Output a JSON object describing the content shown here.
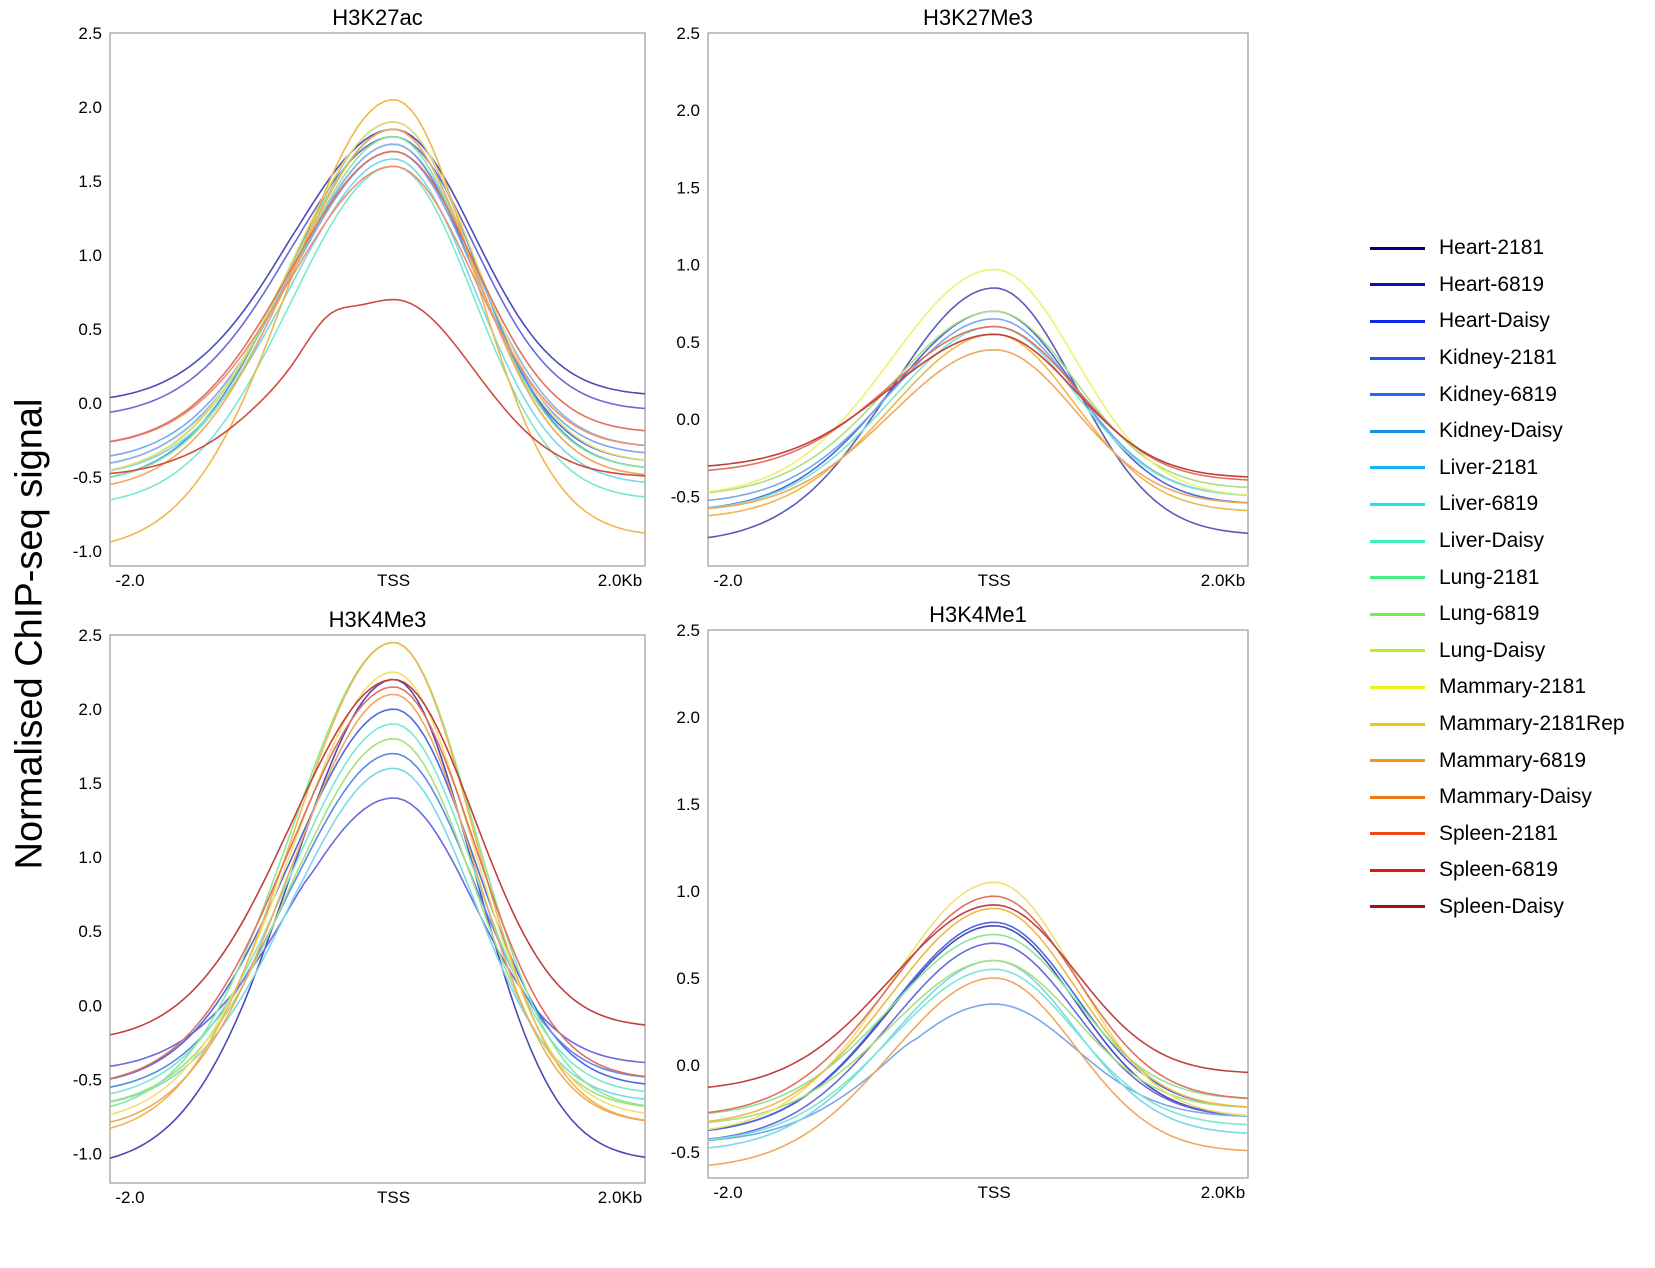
{
  "ylabel": "Normalised ChIP-seq signal",
  "legend": [
    {
      "label": "Heart-2181",
      "color": "#00007a"
    },
    {
      "label": "Heart-6819",
      "color": "#0a14b4"
    },
    {
      "label": "Heart-Daisy",
      "color": "#0a28e6"
    },
    {
      "label": "Kidney-2181",
      "color": "#2350f0"
    },
    {
      "label": "Kidney-6819",
      "color": "#1c6cf0"
    },
    {
      "label": "Kidney-Daisy",
      "color": "#1490e6"
    },
    {
      "label": "Liver-2181",
      "color": "#14b4f0"
    },
    {
      "label": "Liver-6819",
      "color": "#1ee6e6"
    },
    {
      "label": "Liver-Daisy",
      "color": "#3cf0be"
    },
    {
      "label": "Lung-2181",
      "color": "#46f082"
    },
    {
      "label": "Lung-6819",
      "color": "#6ef050"
    },
    {
      "label": "Lung-Daisy",
      "color": "#b4f01e"
    },
    {
      "label": "Mammary-2181",
      "color": "#f0f01e"
    },
    {
      "label": "Mammary-2181Rep",
      "color": "#f0c80a"
    },
    {
      "label": "Mammary-6819",
      "color": "#f09a14"
    },
    {
      "label": "Mammary-Daisy",
      "color": "#f07814"
    },
    {
      "label": "Spleen-2181",
      "color": "#f04a14"
    },
    {
      "label": "Spleen-6819",
      "color": "#e61414"
    },
    {
      "label": "Spleen-Daisy",
      "color": "#a01414"
    }
  ],
  "chart_data": [
    {
      "type": "line",
      "title": "H3K27ac",
      "x_ticks": [
        "-2.0",
        "TSS",
        "2.0Kb"
      ],
      "ylim": [
        -1.1,
        2.5
      ],
      "yticks": [
        "2.5",
        "2.0",
        "1.5",
        "1.0",
        "0.5",
        "0.0",
        "-0.5",
        "-1.0"
      ],
      "series": [
        {
          "name": "Heart-2181",
          "values": [
            0.0,
            1.2,
            1.85,
            0.05
          ],
          "color": "#4a4ab8"
        },
        {
          "name": "Heart-6819",
          "values": [
            -0.1,
            1.1,
            1.8,
            -0.05
          ],
          "color": "#6a6ad8"
        },
        {
          "name": "Heart-Daisy",
          "values": [
            -0.45,
            0.95,
            1.75,
            -0.4
          ],
          "color": "#4a6ae0"
        },
        {
          "name": "Kidney-2181",
          "values": [
            -0.55,
            0.75,
            1.9,
            -0.45
          ],
          "color": "#5a8ae8"
        },
        {
          "name": "Kidney-6819",
          "values": [
            -0.4,
            0.8,
            1.7,
            -0.35
          ],
          "color": "#7aa8e8"
        },
        {
          "name": "Kidney-Daisy",
          "values": [
            -0.45,
            0.8,
            1.75,
            -0.3
          ],
          "color": "#8ab8e8"
        },
        {
          "name": "Liver-2181",
          "values": [
            -0.5,
            0.7,
            1.65,
            -0.55
          ],
          "color": "#7ad8e8"
        },
        {
          "name": "Liver-6819",
          "values": [
            -0.7,
            0.6,
            1.6,
            -0.65
          ],
          "color": "#7ae8d0"
        },
        {
          "name": "Lung-2181",
          "values": [
            -0.55,
            0.75,
            1.8,
            -0.45
          ],
          "color": "#8ae89a"
        },
        {
          "name": "Lung-6819",
          "values": [
            -0.5,
            0.75,
            1.85,
            -0.5
          ],
          "color": "#a8e080"
        },
        {
          "name": "Mammary-2181",
          "values": [
            -0.5,
            0.8,
            1.9,
            -0.4
          ],
          "color": "#e8e070"
        },
        {
          "name": "Mammary-2181Rep",
          "values": [
            -1.0,
            0.9,
            2.05,
            -0.9
          ],
          "color": "#f0b84a"
        },
        {
          "name": "Mammary-6819",
          "values": [
            -0.6,
            0.7,
            1.85,
            -0.5
          ],
          "color": "#f0a860"
        },
        {
          "name": "Spleen-2181",
          "values": [
            -0.3,
            0.9,
            1.6,
            -0.3
          ],
          "color": "#f09070"
        },
        {
          "name": "Spleen-6819",
          "values": [
            -0.3,
            0.85,
            1.7,
            -0.2
          ],
          "color": "#e07060"
        },
        {
          "name": "Spleen-Daisy",
          "values": [
            -0.5,
            0.7,
            0.7,
            -0.5
          ],
          "color": "#d04a40"
        }
      ]
    },
    {
      "type": "line",
      "title": "H3K27Me3",
      "x_ticks": [
        "-2.0",
        "TSS",
        "2.0Kb"
      ],
      "ylim": [
        -0.95,
        2.5
      ],
      "yticks": [
        "2.5",
        "2.0",
        "1.5",
        "1.0",
        "0.5",
        "0.0",
        "-0.5"
      ],
      "series": [
        {
          "name": "Heart-2181",
          "values": [
            -0.8,
            0.1,
            0.85,
            -0.75
          ],
          "color": "#5a5ab8"
        },
        {
          "name": "Heart-6819",
          "values": [
            -0.6,
            0.05,
            0.7,
            -0.55
          ],
          "color": "#4a6ae0"
        },
        {
          "name": "Kidney-6819",
          "values": [
            -0.55,
            0.05,
            0.65,
            -0.5
          ],
          "color": "#7aa8e8"
        },
        {
          "name": "Liver-6819",
          "values": [
            -0.6,
            0.0,
            0.6,
            -0.5
          ],
          "color": "#7ae8d0"
        },
        {
          "name": "Lung-6819",
          "values": [
            -0.5,
            0.1,
            0.7,
            -0.45
          ],
          "color": "#a8e080"
        },
        {
          "name": "Mammary-2181",
          "values": [
            -0.5,
            0.2,
            0.97,
            -0.5
          ],
          "color": "#f0f070"
        },
        {
          "name": "Mammary-2181Rep",
          "values": [
            -0.65,
            0.05,
            0.55,
            -0.6
          ],
          "color": "#f0b84a"
        },
        {
          "name": "Mammary-6819",
          "values": [
            -0.6,
            0.0,
            0.45,
            -0.55
          ],
          "color": "#f0a860"
        },
        {
          "name": "Spleen-2181",
          "values": [
            -0.35,
            0.15,
            0.6,
            -0.4
          ],
          "color": "#e07060"
        },
        {
          "name": "Spleen-Daisy",
          "values": [
            -0.32,
            0.1,
            0.55,
            -0.38
          ],
          "color": "#c04040"
        }
      ]
    },
    {
      "type": "line",
      "title": "H3K4Me3",
      "x_ticks": [
        "-2.0",
        "TSS",
        "2.0Kb"
      ],
      "ylim": [
        -1.2,
        2.5
      ],
      "yticks": [
        "2.5",
        "2.0",
        "1.5",
        "1.0",
        "0.5",
        "0.0",
        "-0.5",
        "-1.0"
      ],
      "series": [
        {
          "name": "Heart-2181",
          "values": [
            -1.1,
            0.8,
            2.2,
            -1.05
          ],
          "color": "#4a4ab8"
        },
        {
          "name": "Heart-6819",
          "values": [
            -0.45,
            0.9,
            1.4,
            -0.4
          ],
          "color": "#6a6ae0"
        },
        {
          "name": "Kidney-2181",
          "values": [
            -0.55,
            1.0,
            2.0,
            -0.55
          ],
          "color": "#4a6ae0"
        },
        {
          "name": "Kidney-6819",
          "values": [
            -0.6,
            0.9,
            1.7,
            -0.5
          ],
          "color": "#5a8ae8"
        },
        {
          "name": "Liver-2181",
          "values": [
            -0.7,
            0.85,
            1.6,
            -0.65
          ],
          "color": "#7ad8e8"
        },
        {
          "name": "Liver-6819",
          "values": [
            -0.65,
            0.9,
            1.9,
            -0.6
          ],
          "color": "#7ae8d0"
        },
        {
          "name": "Lung-2181",
          "values": [
            -0.75,
            1.0,
            2.45,
            -0.7
          ],
          "color": "#8ae89a"
        },
        {
          "name": "Lung-6819",
          "values": [
            -0.7,
            1.0,
            1.8,
            -0.7
          ],
          "color": "#a8e080"
        },
        {
          "name": "Mammary-2181",
          "values": [
            -0.8,
            1.05,
            2.25,
            -0.75
          ],
          "color": "#f0e070"
        },
        {
          "name": "Mammary-2181Rep",
          "values": [
            -0.9,
            1.0,
            2.45,
            -0.8
          ],
          "color": "#f0b84a"
        },
        {
          "name": "Mammary-6819",
          "values": [
            -0.85,
            1.0,
            2.1,
            -0.8
          ],
          "color": "#f0a860"
        },
        {
          "name": "Spleen-2181",
          "values": [
            -0.55,
            1.1,
            2.15,
            -0.5
          ],
          "color": "#e07060"
        },
        {
          "name": "Spleen-Daisy",
          "values": [
            -0.25,
            1.2,
            2.2,
            -0.15
          ],
          "color": "#c04040"
        }
      ]
    },
    {
      "type": "line",
      "title": "H3K4Me1",
      "x_ticks": [
        "-2.0",
        "TSS",
        "2.0Kb"
      ],
      "ylim": [
        -0.65,
        2.5
      ],
      "yticks": [
        "2.5",
        "2.0",
        "1.5",
        "1.0",
        "0.5",
        "0.0",
        "-0.5"
      ],
      "series": [
        {
          "name": "Heart-2181",
          "values": [
            -0.4,
            0.2,
            0.8,
            -0.3
          ],
          "color": "#4a4ab8"
        },
        {
          "name": "Heart-6819",
          "values": [
            -0.45,
            0.15,
            0.7,
            -0.3
          ],
          "color": "#6a6ae0"
        },
        {
          "name": "Kidney-2181",
          "values": [
            -0.4,
            0.2,
            0.82,
            -0.25
          ],
          "color": "#4a6ae0"
        },
        {
          "name": "Kidney-6819",
          "values": [
            -0.45,
            0.15,
            0.35,
            -0.3
          ],
          "color": "#7aa8e8"
        },
        {
          "name": "Liver-2181",
          "values": [
            -0.5,
            0.1,
            0.6,
            -0.4
          ],
          "color": "#7ad8e8"
        },
        {
          "name": "Liver-6819",
          "values": [
            -0.45,
            0.1,
            0.55,
            -0.35
          ],
          "color": "#7ae8d0"
        },
        {
          "name": "Lung-2181",
          "values": [
            -0.3,
            0.2,
            0.75,
            -0.2
          ],
          "color": "#8ae89a"
        },
        {
          "name": "Lung-6819",
          "values": [
            -0.35,
            0.15,
            0.6,
            -0.25
          ],
          "color": "#a8e080"
        },
        {
          "name": "Mammary-2181",
          "values": [
            -0.4,
            0.3,
            1.05,
            -0.3
          ],
          "color": "#f0e070"
        },
        {
          "name": "Mammary-2181Rep",
          "values": [
            -0.35,
            0.25,
            0.9,
            -0.25
          ],
          "color": "#f0b84a"
        },
        {
          "name": "Mammary-6819",
          "values": [
            -0.6,
            -0.1,
            0.5,
            -0.5
          ],
          "color": "#f0a860"
        },
        {
          "name": "Spleen-2181",
          "values": [
            -0.3,
            0.3,
            0.97,
            -0.2
          ],
          "color": "#e07060"
        },
        {
          "name": "Spleen-Daisy",
          "values": [
            -0.15,
            0.5,
            0.92,
            -0.05
          ],
          "color": "#c04040"
        }
      ]
    }
  ]
}
